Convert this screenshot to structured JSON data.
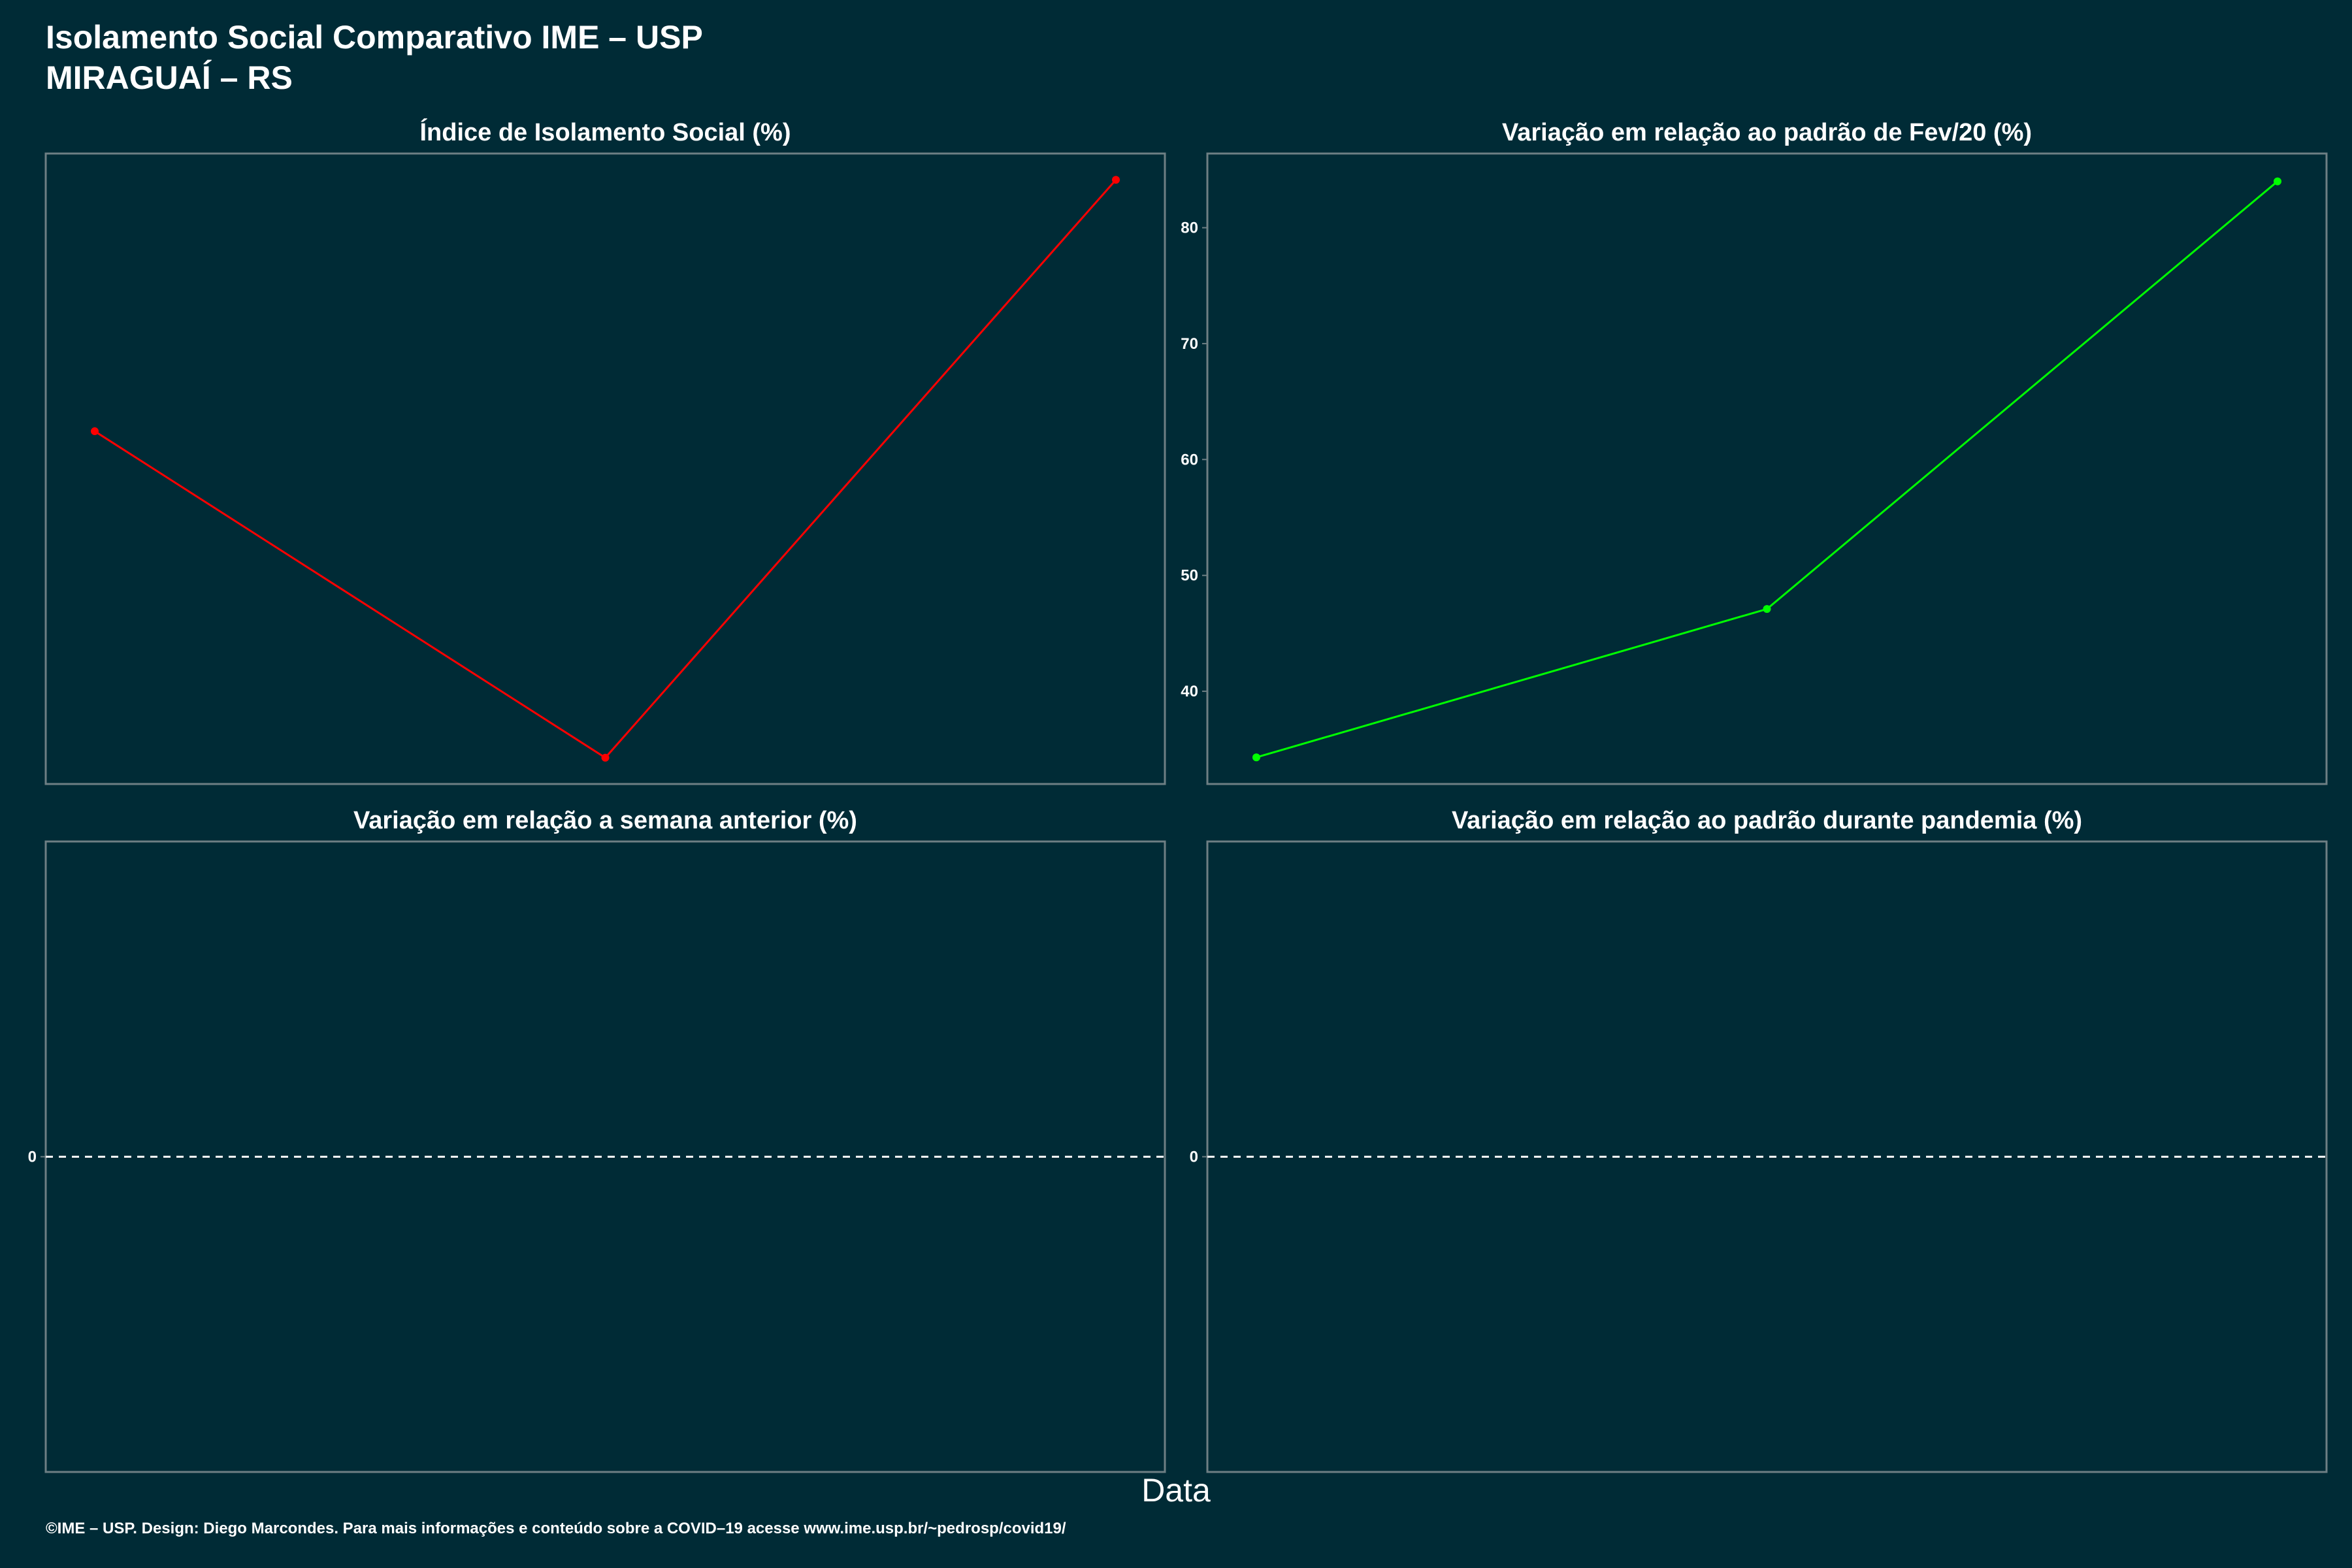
{
  "header": {
    "title_line1": "Isolamento Social Comparativo IME – USP",
    "title_line2": "MIRAGUAÍ – RS"
  },
  "xlabel": "Data",
  "caption": "©IME – USP. Design: Diego Marcondes. Para mais informações e conteúdo sobre a COVID–19 acesse www.ime.usp.br/~pedrosp/covid19/",
  "colors": {
    "background": "#002b36",
    "panel_border": "#6e7f84",
    "series_isolamento": "#ff0000",
    "series_fev20": "#00ff00",
    "reference_line": "#ffffff",
    "text": "#ffffff"
  },
  "chart_data": [
    {
      "type": "line",
      "title": "Índice de Isolamento Social (%)",
      "x": [
        1,
        2,
        3
      ],
      "series": [
        {
          "values": [
            58.4,
            49.7,
            65.1
          ],
          "color": "#ff0000"
        }
      ],
      "ylim": [
        49,
        65.8
      ],
      "yticks": [],
      "grid": false
    },
    {
      "type": "line",
      "title": "Variação em relação ao padrão de Fev/20 (%)",
      "x": [
        1,
        2,
        3
      ],
      "series": [
        {
          "values": [
            34.3,
            47.1,
            84.0
          ],
          "color": "#00ff00"
        }
      ],
      "ylim": [
        32,
        86.4
      ],
      "yticks": [
        40,
        50,
        60,
        70,
        80
      ],
      "grid": false
    },
    {
      "type": "line",
      "title": "Variação em relação a semana anterior (%)",
      "x": [],
      "series": [],
      "ylim": [
        -1,
        1
      ],
      "yticks": [
        0
      ],
      "reference_line": 0,
      "grid": false
    },
    {
      "type": "line",
      "title": "Variação em relação ao padrão durante pandemia (%)",
      "x": [],
      "series": [],
      "ylim": [
        -1,
        1
      ],
      "yticks": [
        0
      ],
      "reference_line": 0,
      "grid": false
    }
  ]
}
